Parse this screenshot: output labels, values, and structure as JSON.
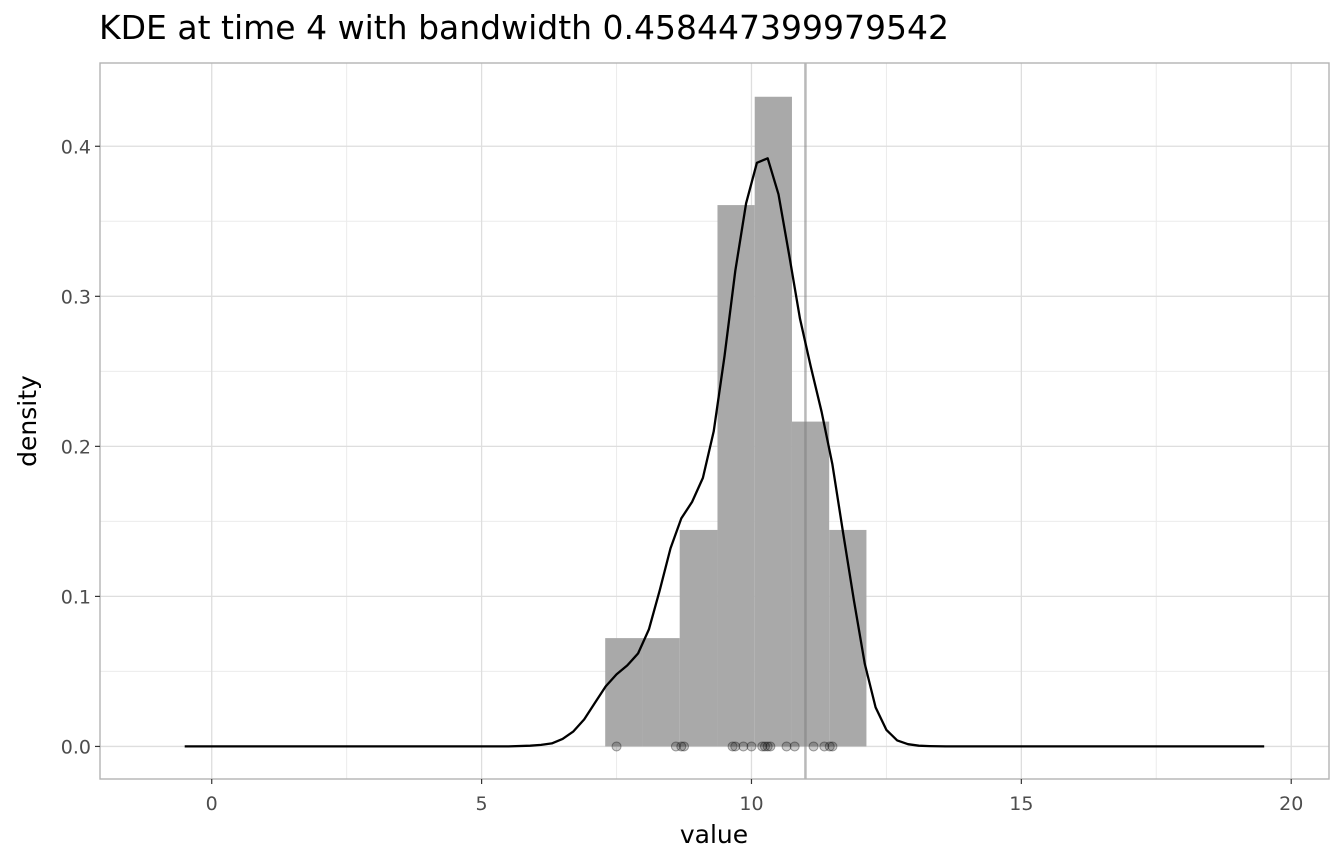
{
  "chart_data": {
    "type": "bar",
    "title": "KDE at time 4 with bandwidth 0.458447399979542",
    "xlabel": "value",
    "ylabel": "density",
    "xlim": [
      -2.07,
      20.7
    ],
    "ylim": [
      -0.0217,
      0.4555
    ],
    "x_ticks": [
      0,
      5,
      10,
      15,
      20
    ],
    "x_tick_labels": [
      "0",
      "5",
      "10",
      "15",
      "20"
    ],
    "y_ticks": [
      0.0,
      0.1,
      0.2,
      0.3,
      0.4
    ],
    "y_tick_labels": [
      "0.0",
      "0.1",
      "0.2",
      "0.3",
      "0.4"
    ],
    "grid": true,
    "histogram": {
      "bins": [
        {
          "x0": 7.29,
          "x1": 7.98,
          "density": 0.0722
        },
        {
          "x0": 7.98,
          "x1": 8.67,
          "density": 0.0722
        },
        {
          "x0": 8.67,
          "x1": 9.37,
          "density": 0.1443
        },
        {
          "x0": 9.37,
          "x1": 10.06,
          "density": 0.3608
        },
        {
          "x0": 10.06,
          "x1": 10.75,
          "density": 0.433
        },
        {
          "x0": 10.75,
          "x1": 11.44,
          "density": 0.2165
        },
        {
          "x0": 11.44,
          "x1": 12.13,
          "density": 0.1443
        }
      ],
      "color": "#a9a9a9"
    },
    "kde_curve": {
      "color": "#000000",
      "x": [
        -0.5,
        5.5,
        5.9,
        6.1,
        6.3,
        6.5,
        6.7,
        6.9,
        7.1,
        7.3,
        7.5,
        7.7,
        7.9,
        8.1,
        8.3,
        8.5,
        8.7,
        8.9,
        9.1,
        9.3,
        9.5,
        9.7,
        9.9,
        10.1,
        10.3,
        10.5,
        10.7,
        10.9,
        11.1,
        11.3,
        11.5,
        11.7,
        11.9,
        12.1,
        12.3,
        12.5,
        12.7,
        12.9,
        13.1,
        13.3,
        13.6,
        19.5
      ],
      "y": [
        0.0,
        0.0,
        0.0005,
        0.001,
        0.002,
        0.005,
        0.01,
        0.018,
        0.029,
        0.04,
        0.048,
        0.054,
        0.062,
        0.078,
        0.104,
        0.132,
        0.152,
        0.163,
        0.179,
        0.21,
        0.26,
        0.317,
        0.362,
        0.389,
        0.392,
        0.368,
        0.327,
        0.285,
        0.253,
        0.223,
        0.188,
        0.142,
        0.097,
        0.055,
        0.026,
        0.011,
        0.004,
        0.0015,
        0.0005,
        0.0002,
        0.0,
        0.0
      ]
    },
    "observations": [
      7.5,
      8.6,
      8.7,
      8.75,
      9.65,
      9.7,
      9.85,
      10.0,
      10.2,
      10.25,
      10.3,
      10.35,
      10.65,
      10.8,
      11.15,
      11.35,
      11.45,
      11.5
    ],
    "reference_line": {
      "x": 11.0,
      "color": "#808080"
    }
  }
}
